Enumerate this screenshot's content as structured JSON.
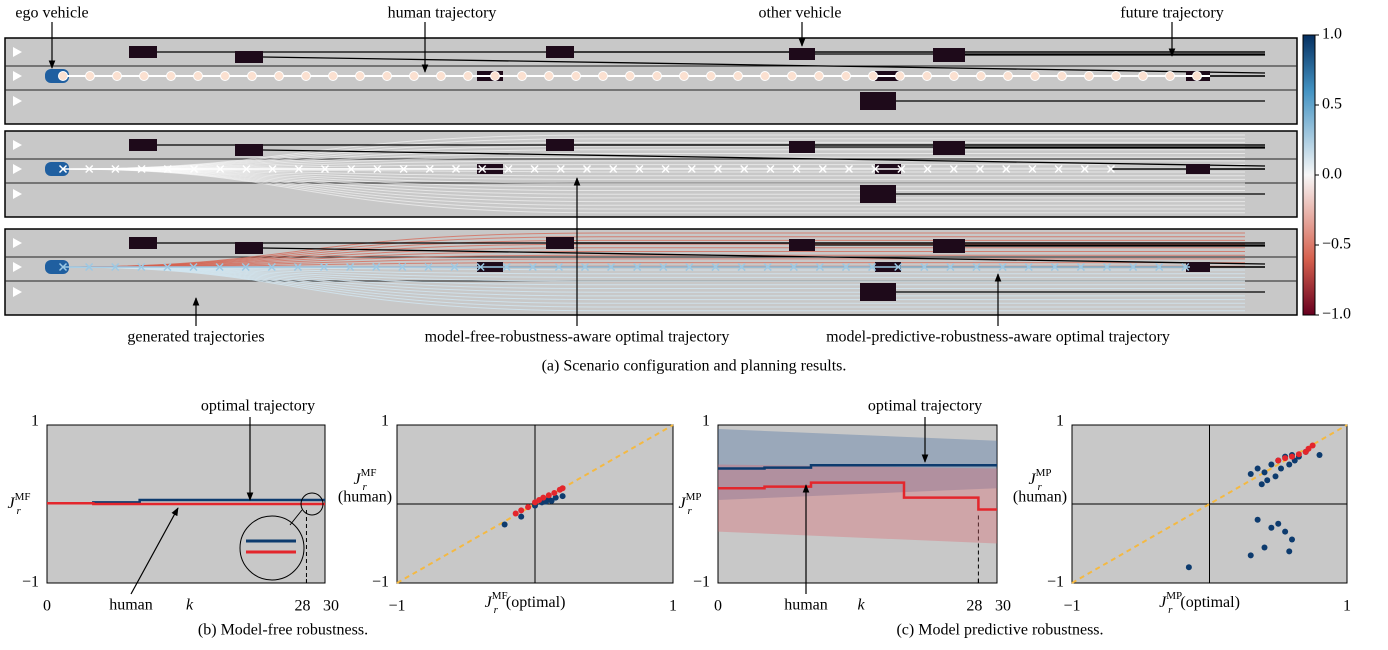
{
  "figure_a": {
    "annotations": [
      "ego vehicle",
      "human trajectory",
      "other vehicle",
      "future trajectory",
      "generated trajectories",
      "model-free-robustness-aware optimal trajectory",
      "model-predictive-robustness-aware optimal trajectory"
    ],
    "colorbar": {
      "ylim": [
        -1,
        1
      ],
      "yticks": [
        {
          "value": 1,
          "label": "1.0"
        },
        {
          "value": 0.5,
          "label": "0.5"
        },
        {
          "value": 0,
          "label": "0.0"
        },
        {
          "value": -0.5,
          "label": "−0.5"
        },
        {
          "value": -1,
          "label": "−1.0"
        }
      ]
    },
    "caption": "(a) Scenario configuration and planning results."
  },
  "chart_data": [
    {
      "type": "line",
      "x": [
        0,
        5,
        10,
        15,
        20,
        25,
        28,
        30
      ],
      "xlim": [
        0,
        30
      ],
      "ylim": [
        -1,
        1
      ],
      "xticks": [
        0,
        28,
        30
      ],
      "yticks": [
        {
          "value": -1,
          "label": "−1"
        },
        1
      ],
      "xlabel": "k",
      "ylabel": {
        "main": "J",
        "sub": "r",
        "sup": "MF"
      },
      "series": [
        {
          "name": "optimal trajectory",
          "color": "#0d3b6e",
          "values": [
            0.01,
            0.02,
            0.05,
            0.05,
            0.05,
            0.05,
            0.05,
            0.05
          ]
        },
        {
          "name": "human",
          "color": "#e3262c",
          "values": [
            0.01,
            0,
            0,
            0,
            0,
            0,
            0,
            0
          ]
        }
      ]
    },
    {
      "type": "scatter",
      "xlim": [
        -1,
        1
      ],
      "ylim": [
        -1,
        1
      ],
      "xticks": [
        {
          "value": -1,
          "label": "−1"
        },
        1
      ],
      "yticks": [
        {
          "value": -1,
          "label": "−1"
        },
        1
      ],
      "xlabel": {
        "main": "J",
        "sub": "r",
        "sup": "MF",
        "suffix": "(optimal)"
      },
      "ylabel": {
        "main": "J",
        "sub": "r",
        "sup": "MF",
        "line2": "(human)"
      },
      "series": [
        {
          "color": "#0d3b6e",
          "x": [
            -0.22,
            -0.1,
            0.05,
            0.1,
            0.12,
            0.15,
            0.2,
            0.08,
            0.0
          ],
          "y": [
            -0.26,
            -0.16,
            0.02,
            0.06,
            0.04,
            0.08,
            0.1,
            0.03,
            -0.02
          ]
        },
        {
          "color": "#e3262c",
          "x": [
            -0.14,
            -0.1,
            -0.05,
            0.0,
            0.03,
            0.06,
            0.1,
            0.14,
            0.18,
            0.2
          ],
          "y": [
            -0.12,
            -0.08,
            -0.04,
            0.02,
            0.05,
            0.08,
            0.11,
            0.14,
            0.18,
            0.2
          ]
        }
      ]
    },
    {
      "type": "line",
      "x": [
        0,
        5,
        10,
        15,
        20,
        25,
        28,
        30
      ],
      "xlim": [
        0,
        30
      ],
      "ylim": [
        -1,
        1
      ],
      "xticks": [
        0,
        28,
        30
      ],
      "yticks": [
        {
          "value": -1,
          "label": "−1"
        },
        1
      ],
      "xlabel": "k",
      "ylabel": {
        "main": "J",
        "sub": "r",
        "sup": "MP"
      },
      "series": [
        {
          "name": "optimal trajectory",
          "color": "#0d3b6e",
          "values": [
            0.45,
            0.46,
            0.49,
            0.49,
            0.49,
            0.49,
            0.49,
            0.49
          ]
        },
        {
          "name": "human",
          "color": "#e3262c",
          "values": [
            0.2,
            0.22,
            0.27,
            0.27,
            0.08,
            0.08,
            -0.07,
            -0.07
          ]
        }
      ]
    },
    {
      "type": "scatter",
      "xlim": [
        -1,
        1
      ],
      "ylim": [
        -1,
        1
      ],
      "xticks": [
        {
          "value": -1,
          "label": "−1"
        },
        1
      ],
      "yticks": [
        {
          "value": -1,
          "label": "−1"
        },
        1
      ],
      "xlabel": {
        "main": "J",
        "sub": "r",
        "sup": "MP",
        "suffix": "(optimal)"
      },
      "ylabel": {
        "main": "J",
        "sub": "r",
        "sup": "MP",
        "line2": "(human)"
      },
      "series": [
        {
          "color": "#0d3b6e",
          "x": [
            0.3,
            0.35,
            0.4,
            0.45,
            0.5,
            0.55,
            0.6,
            0.42,
            0.48,
            0.52,
            0.58,
            0.65,
            0.7,
            0.38,
            0.8,
            0.62,
            0.5,
            0.45,
            0.35,
            0.55,
            0.6,
            0.4,
            0.3,
            0.58,
            -0.15
          ],
          "y": [
            0.38,
            0.45,
            0.4,
            0.5,
            0.55,
            0.6,
            0.62,
            0.3,
            0.35,
            0.45,
            0.5,
            0.6,
            0.66,
            0.25,
            0.62,
            0.55,
            -0.25,
            -0.3,
            -0.2,
            -0.35,
            -0.45,
            -0.55,
            -0.65,
            -0.6,
            -0.8
          ]
        },
        {
          "color": "#e3262c",
          "x": [
            0.5,
            0.55,
            0.6,
            0.65,
            0.7,
            0.72,
            0.75
          ],
          "y": [
            0.55,
            0.58,
            0.6,
            0.63,
            0.66,
            0.7,
            0.74
          ]
        }
      ]
    }
  ],
  "captions": {
    "b": "(b) Model-free robustness.",
    "c": "(c) Model predictive robustness."
  }
}
